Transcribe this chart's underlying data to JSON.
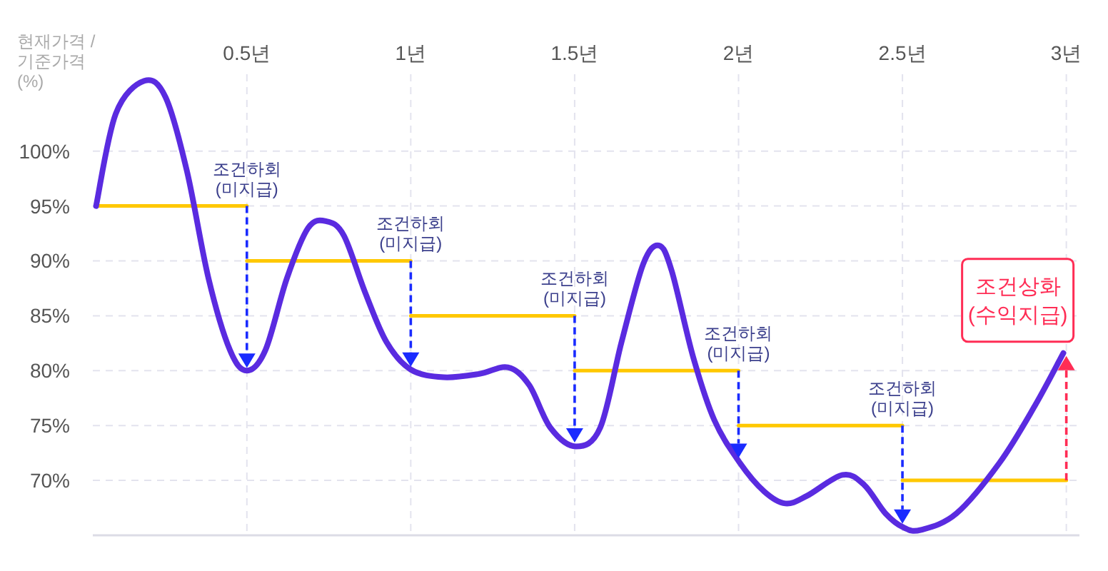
{
  "chart_data": {
    "type": "line",
    "ylabel": "현재가격 /\n기준가격\n(%)",
    "xlim": [
      0.03,
      3.04
    ],
    "ylim": [
      65,
      107
    ],
    "xticks": [
      {
        "value": 0.5,
        "label": "0.5년"
      },
      {
        "value": 1,
        "label": "1년"
      },
      {
        "value": 1.5,
        "label": "1.5년"
      },
      {
        "value": 2,
        "label": "2년"
      },
      {
        "value": 2.5,
        "label": "2.5년"
      },
      {
        "value": 3,
        "label": "3년"
      }
    ],
    "yticks": [
      {
        "value": 70,
        "label": "70%"
      },
      {
        "value": 75,
        "label": "75%"
      },
      {
        "value": 80,
        "label": "80%"
      },
      {
        "value": 85,
        "label": "85%"
      },
      {
        "value": 90,
        "label": "90%"
      },
      {
        "value": 95,
        "label": "95%"
      },
      {
        "value": 100,
        "label": "100%"
      }
    ],
    "grid": true,
    "marker": "none",
    "series": [
      {
        "color": "#5a2be0",
        "x": [
          0.04,
          0.1,
          0.187,
          0.252,
          0.317,
          0.383,
          0.448,
          0.5,
          0.557,
          0.622,
          0.687,
          0.743,
          0.796,
          0.861,
          0.926,
          1.0,
          1.1,
          1.209,
          1.296,
          1.361,
          1.426,
          1.504,
          1.578,
          1.643,
          1.709,
          1.757,
          1.796,
          1.861,
          1.926,
          2.004,
          2.078,
          2.143,
          2.209,
          2.317,
          2.383,
          2.448,
          2.504,
          2.557,
          2.665,
          2.796,
          2.904,
          2.991
        ],
        "values": [
          95,
          103.4,
          106.4,
          104.9,
          98.2,
          88.4,
          81.9,
          80,
          81.9,
          88.4,
          93,
          93.6,
          92.3,
          87.1,
          82.6,
          80.1,
          79.4,
          79.7,
          80.3,
          78.7,
          74.8,
          73.1,
          74.8,
          82.6,
          89.7,
          91.4,
          89.1,
          81.3,
          75.5,
          71.6,
          69,
          67.9,
          68.6,
          70.5,
          69.6,
          67,
          65.7,
          65.5,
          67,
          71.6,
          76.8,
          81.6
        ]
      },
      {
        "color": "#ffc800",
        "x": [
          0.04,
          0.5
        ],
        "values": [
          95,
          95
        ]
      },
      {
        "color": "#ffc800",
        "x": [
          0.5,
          1
        ],
        "values": [
          90,
          90
        ]
      },
      {
        "color": "#ffc800",
        "x": [
          1,
          1.5
        ],
        "values": [
          85,
          85
        ]
      },
      {
        "color": "#ffc800",
        "x": [
          1.5,
          2
        ],
        "values": [
          80,
          80
        ]
      },
      {
        "color": "#ffc800",
        "x": [
          2,
          2.5
        ],
        "values": [
          75,
          75
        ]
      },
      {
        "color": "#ffc800",
        "x": [
          2.5,
          3
        ],
        "values": [
          70,
          70
        ]
      }
    ],
    "annotations": [
      {
        "text": "조건하회\n(미지급)",
        "x": 0.5,
        "y": 95
      },
      {
        "text": "조건하회\n(미지급)",
        "x": 1,
        "y": 90
      },
      {
        "text": "조건하회\n(미지급)",
        "x": 1.5,
        "y": 85
      },
      {
        "text": "조건하회\n(미지급)",
        "x": 2,
        "y": 80
      },
      {
        "text": "조건하회\n(미지급)",
        "x": 2.5,
        "y": 75
      },
      {
        "text": "조건상화\n(수익지급)",
        "x": 3,
        "y": 81.6
      }
    ]
  }
}
